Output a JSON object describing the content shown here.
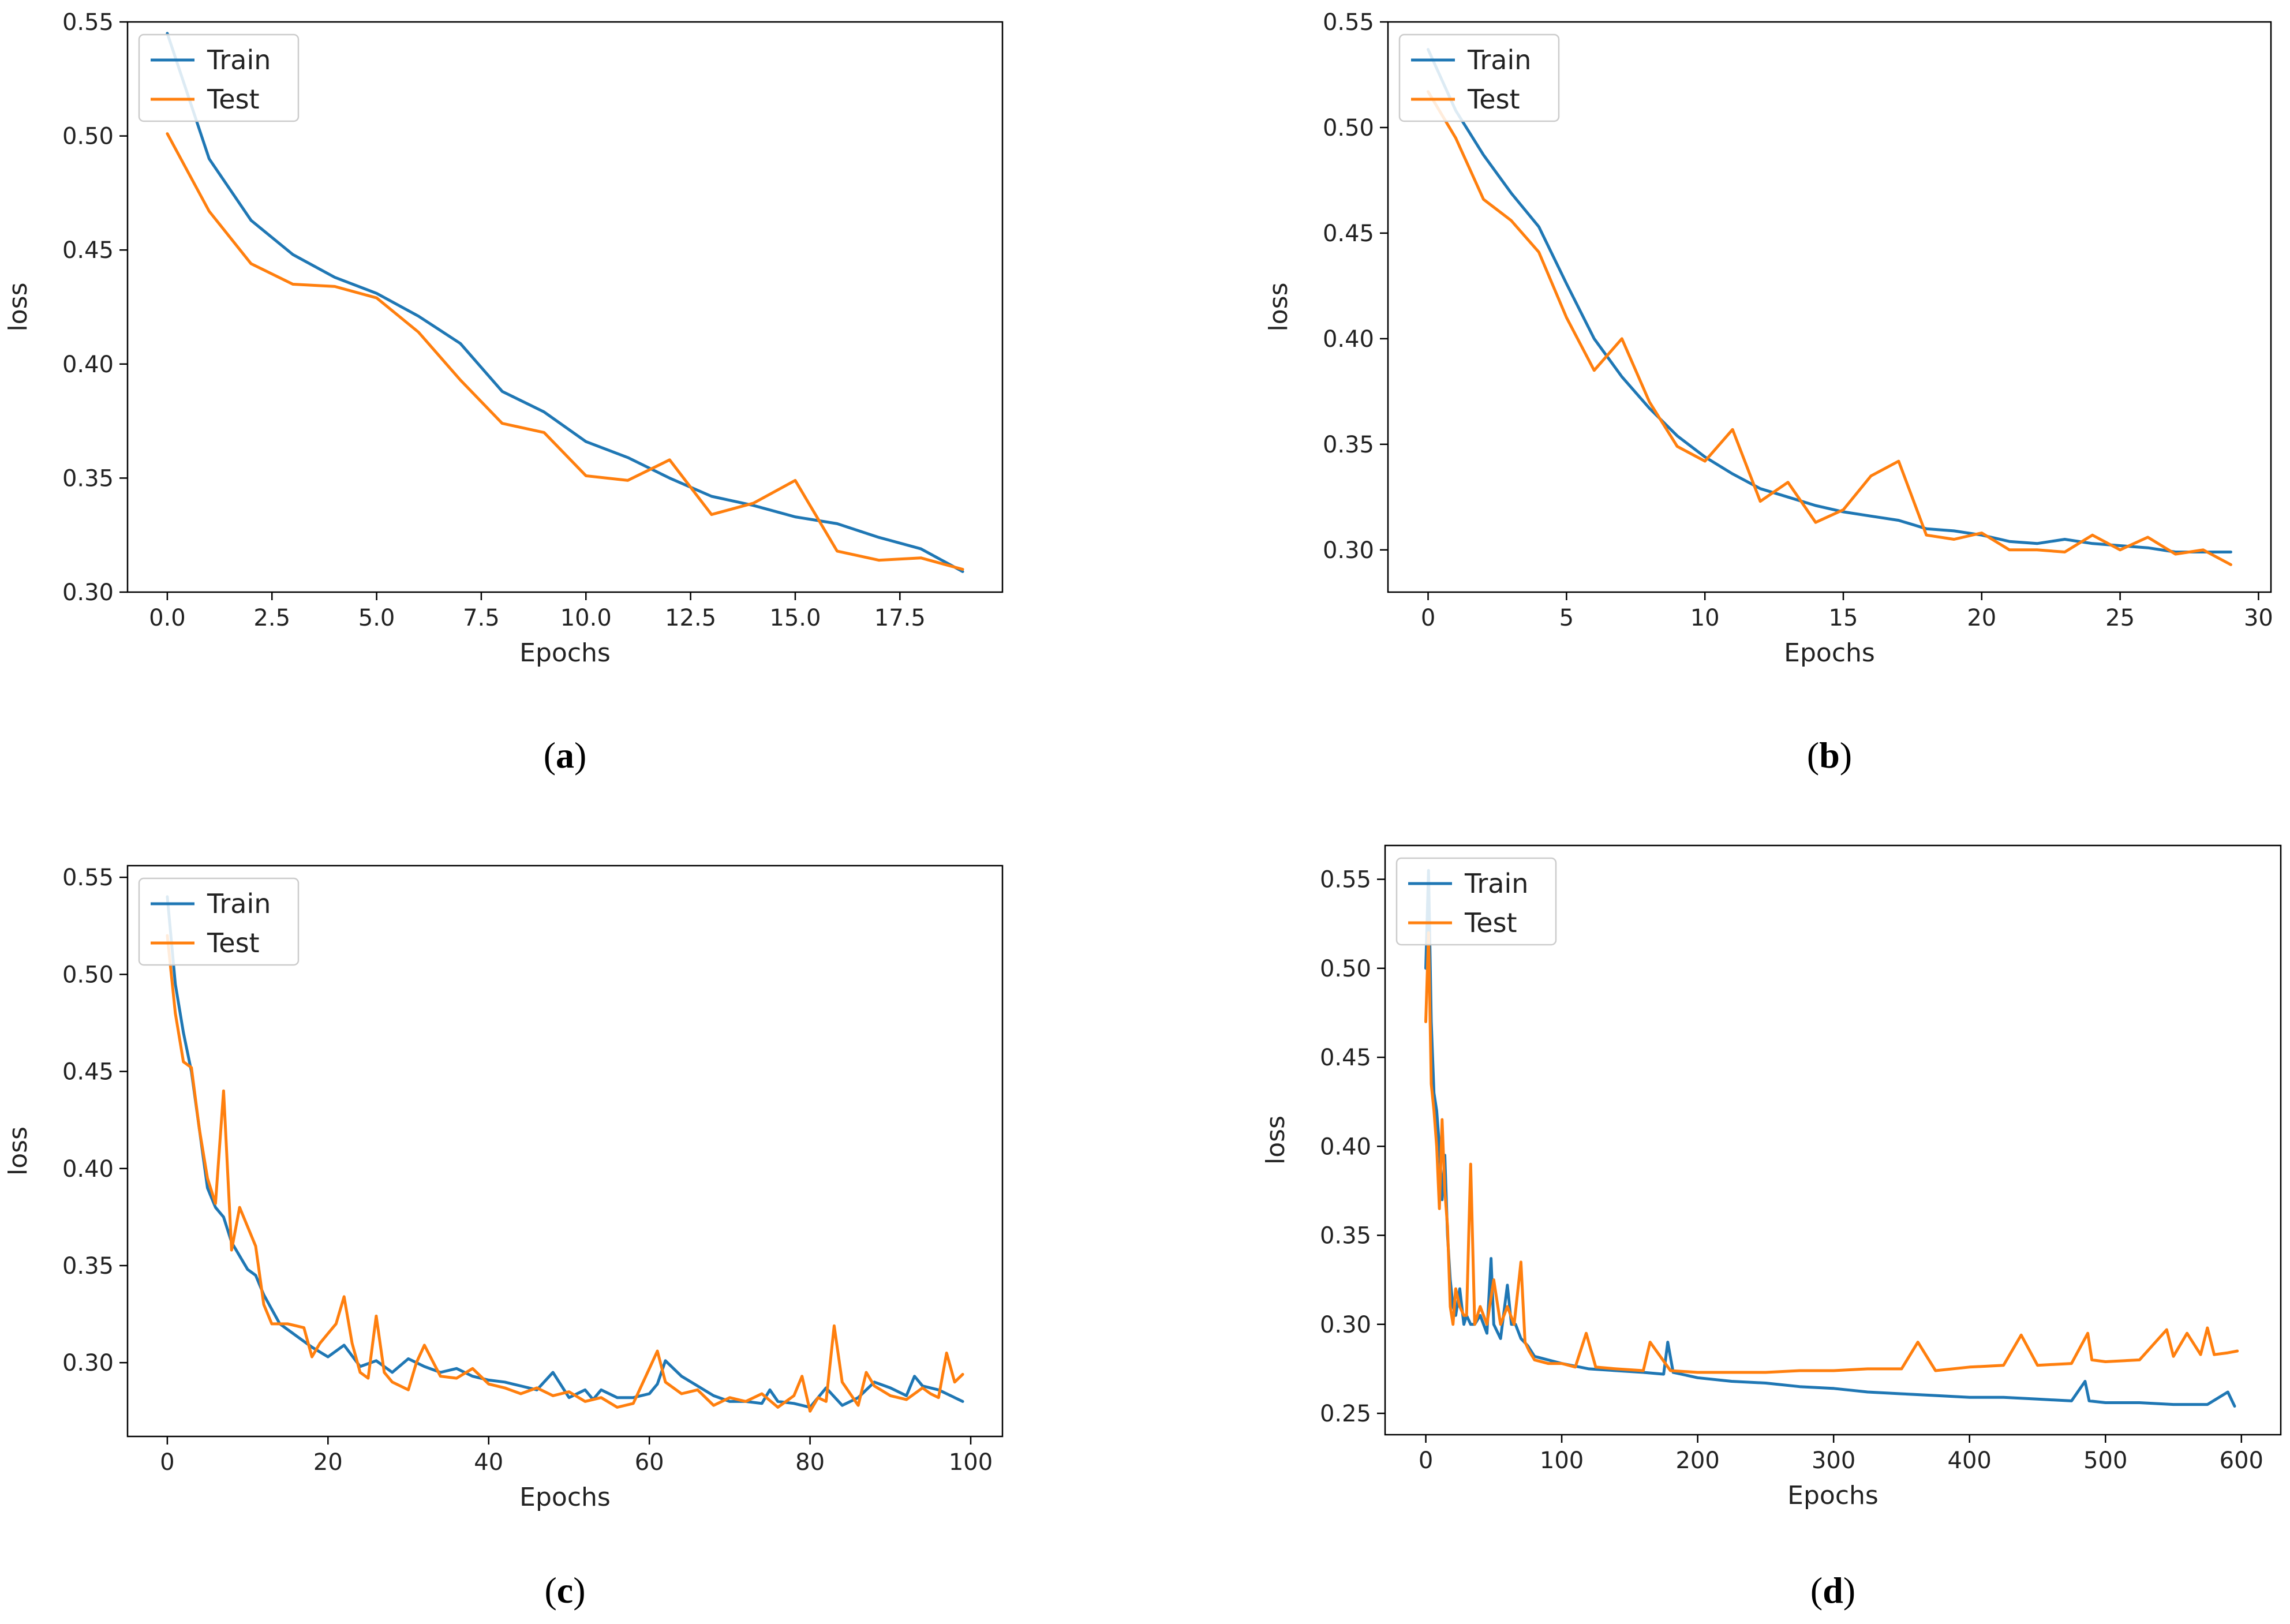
{
  "figure": {
    "series_colors": {
      "Train": "#1f77b4",
      "Test": "#ff7f0e"
    }
  },
  "chart_data": [
    {
      "id": "a",
      "caption_letter": "a",
      "type": "line",
      "xlabel": "Epochs",
      "ylabel": "loss",
      "xlim": [
        -0.95,
        19.95
      ],
      "ylim": [
        0.3,
        0.55
      ],
      "xticks": [
        0.0,
        2.5,
        5.0,
        7.5,
        10.0,
        12.5,
        15.0,
        17.5
      ],
      "xtick_labels": [
        "0.0",
        "2.5",
        "5.0",
        "7.5",
        "10.0",
        "12.5",
        "15.0",
        "17.5"
      ],
      "yticks": [
        0.3,
        0.35,
        0.4,
        0.45,
        0.5,
        0.55
      ],
      "ytick_labels": [
        "0.30",
        "0.35",
        "0.40",
        "0.45",
        "0.50",
        "0.55"
      ],
      "legend": [
        "Train",
        "Test"
      ],
      "legend_loc": "upper left",
      "series": [
        {
          "name": "Train",
          "color": "#1f77b4",
          "x": [
            0,
            1,
            2,
            3,
            4,
            5,
            6,
            7,
            8,
            9,
            10,
            11,
            12,
            13,
            14,
            15,
            16,
            17,
            18,
            19
          ],
          "y": [
            0.545,
            0.49,
            0.463,
            0.448,
            0.438,
            0.431,
            0.421,
            0.409,
            0.388,
            0.379,
            0.366,
            0.359,
            0.35,
            0.342,
            0.338,
            0.333,
            0.33,
            0.324,
            0.319,
            0.309
          ]
        },
        {
          "name": "Test",
          "color": "#ff7f0e",
          "x": [
            0,
            1,
            2,
            3,
            4,
            5,
            6,
            7,
            8,
            9,
            10,
            11,
            12,
            13,
            14,
            15,
            16,
            17,
            18,
            19
          ],
          "y": [
            0.501,
            0.467,
            0.444,
            0.435,
            0.434,
            0.429,
            0.414,
            0.393,
            0.374,
            0.37,
            0.351,
            0.349,
            0.358,
            0.334,
            0.339,
            0.349,
            0.318,
            0.314,
            0.315,
            0.31
          ]
        }
      ]
    },
    {
      "id": "b",
      "caption_letter": "b",
      "type": "line",
      "xlabel": "Epochs",
      "ylabel": "loss",
      "xlim": [
        -1.45,
        30.45
      ],
      "ylim": [
        0.28,
        0.55
      ],
      "xticks": [
        0,
        5,
        10,
        15,
        20,
        25,
        30
      ],
      "xtick_labels": [
        "0",
        "5",
        "10",
        "15",
        "20",
        "25",
        "30"
      ],
      "yticks": [
        0.3,
        0.35,
        0.4,
        0.45,
        0.5,
        0.55
      ],
      "ytick_labels": [
        "0.30",
        "0.35",
        "0.40",
        "0.45",
        "0.50",
        "0.55"
      ],
      "legend": [
        "Train",
        "Test"
      ],
      "legend_loc": "upper left",
      "series": [
        {
          "name": "Train",
          "color": "#1f77b4",
          "x": [
            0,
            1,
            2,
            3,
            4,
            5,
            6,
            7,
            8,
            9,
            10,
            11,
            12,
            13,
            14,
            15,
            16,
            17,
            18,
            19,
            20,
            21,
            22,
            23,
            24,
            25,
            26,
            27,
            28,
            29
          ],
          "y": [
            0.537,
            0.508,
            0.487,
            0.469,
            0.453,
            0.426,
            0.4,
            0.382,
            0.367,
            0.354,
            0.344,
            0.336,
            0.329,
            0.325,
            0.321,
            0.318,
            0.316,
            0.314,
            0.31,
            0.309,
            0.307,
            0.304,
            0.303,
            0.305,
            0.303,
            0.302,
            0.301,
            0.299,
            0.299,
            0.299
          ]
        },
        {
          "name": "Test",
          "color": "#ff7f0e",
          "x": [
            0,
            1,
            2,
            3,
            4,
            5,
            6,
            7,
            8,
            9,
            10,
            11,
            12,
            13,
            14,
            15,
            16,
            17,
            18,
            19,
            20,
            21,
            22,
            23,
            24,
            25,
            26,
            27,
            28,
            29
          ],
          "y": [
            0.517,
            0.495,
            0.466,
            0.456,
            0.441,
            0.41,
            0.385,
            0.4,
            0.37,
            0.349,
            0.342,
            0.357,
            0.323,
            0.332,
            0.313,
            0.319,
            0.335,
            0.342,
            0.307,
            0.305,
            0.308,
            0.3,
            0.3,
            0.299,
            0.307,
            0.3,
            0.306,
            0.298,
            0.3,
            0.293
          ]
        }
      ]
    },
    {
      "id": "c",
      "caption_letter": "c",
      "type": "line",
      "xlabel": "Epochs",
      "ylabel": "loss",
      "xlim": [
        -4.95,
        103.95
      ],
      "ylim": [
        0.262,
        0.556
      ],
      "xticks": [
        0,
        20,
        40,
        60,
        80,
        100
      ],
      "xtick_labels": [
        "0",
        "20",
        "40",
        "60",
        "80",
        "100"
      ],
      "yticks": [
        0.3,
        0.35,
        0.4,
        0.45,
        0.5,
        0.55
      ],
      "ytick_labels": [
        "0.30",
        "0.35",
        "0.40",
        "0.45",
        "0.50",
        "0.55"
      ],
      "legend": [
        "Train",
        "Test"
      ],
      "legend_loc": "upper left",
      "series": [
        {
          "name": "Train",
          "color": "#1f77b4",
          "x": [
            0,
            1,
            2,
            3,
            4,
            5,
            6,
            7,
            8,
            9,
            10,
            11,
            12,
            14,
            16,
            18,
            20,
            22,
            24,
            26,
            28,
            30,
            32,
            34,
            36,
            38,
            40,
            42,
            44,
            46,
            48,
            50,
            52,
            53,
            54,
            56,
            58,
            60,
            61,
            62,
            64,
            66,
            68,
            70,
            72,
            74,
            75,
            76,
            78,
            80,
            82,
            84,
            86,
            88,
            90,
            92,
            93,
            94,
            96,
            98,
            99
          ],
          "y": [
            0.54,
            0.495,
            0.47,
            0.45,
            0.42,
            0.39,
            0.38,
            0.375,
            0.362,
            0.355,
            0.348,
            0.345,
            0.335,
            0.32,
            0.314,
            0.308,
            0.303,
            0.309,
            0.298,
            0.301,
            0.295,
            0.302,
            0.298,
            0.295,
            0.297,
            0.293,
            0.291,
            0.29,
            0.288,
            0.286,
            0.295,
            0.282,
            0.286,
            0.281,
            0.286,
            0.282,
            0.282,
            0.284,
            0.289,
            0.301,
            0.293,
            0.288,
            0.283,
            0.28,
            0.28,
            0.279,
            0.286,
            0.28,
            0.279,
            0.277,
            0.287,
            0.278,
            0.282,
            0.29,
            0.287,
            0.283,
            0.293,
            0.288,
            0.286,
            0.282,
            0.28
          ]
        },
        {
          "name": "Test",
          "color": "#ff7f0e",
          "x": [
            0,
            1,
            2,
            3,
            4,
            5,
            6,
            7,
            8,
            9,
            10,
            11,
            12,
            13,
            15,
            17,
            18,
            19,
            20,
            21,
            22,
            23,
            24,
            25,
            26,
            27,
            28,
            30,
            31,
            32,
            34,
            36,
            38,
            40,
            42,
            44,
            46,
            48,
            50,
            52,
            54,
            56,
            58,
            60,
            61,
            62,
            64,
            66,
            68,
            70,
            72,
            74,
            76,
            78,
            79,
            80,
            81,
            82,
            83,
            84,
            86,
            87,
            88,
            90,
            92,
            94,
            95,
            96,
            97,
            98,
            99
          ],
          "y": [
            0.52,
            0.48,
            0.455,
            0.452,
            0.42,
            0.395,
            0.382,
            0.44,
            0.358,
            0.38,
            0.37,
            0.36,
            0.33,
            0.32,
            0.32,
            0.318,
            0.303,
            0.31,
            0.315,
            0.32,
            0.334,
            0.31,
            0.295,
            0.292,
            0.324,
            0.295,
            0.29,
            0.286,
            0.3,
            0.309,
            0.293,
            0.292,
            0.297,
            0.289,
            0.287,
            0.284,
            0.287,
            0.283,
            0.285,
            0.28,
            0.282,
            0.277,
            0.279,
            0.297,
            0.306,
            0.29,
            0.284,
            0.286,
            0.278,
            0.282,
            0.28,
            0.284,
            0.277,
            0.283,
            0.293,
            0.275,
            0.282,
            0.28,
            0.319,
            0.29,
            0.278,
            0.295,
            0.288,
            0.283,
            0.281,
            0.287,
            0.284,
            0.282,
            0.305,
            0.29,
            0.294
          ]
        }
      ]
    },
    {
      "id": "d",
      "caption_letter": "d",
      "type": "line",
      "xlabel": "Epochs",
      "ylabel": "loss",
      "xlim": [
        -29.95,
        628.95
      ],
      "ylim": [
        0.238,
        0.569
      ],
      "xticks": [
        0,
        100,
        200,
        300,
        400,
        500,
        600
      ],
      "xtick_labels": [
        "0",
        "100",
        "200",
        "300",
        "400",
        "500",
        "600"
      ],
      "yticks": [
        0.25,
        0.3,
        0.35,
        0.4,
        0.45,
        0.5,
        0.55
      ],
      "ytick_labels": [
        "0.25",
        "0.30",
        "0.35",
        "0.40",
        "0.45",
        "0.50",
        "0.55"
      ],
      "legend": [
        "Train",
        "Test"
      ],
      "legend_loc": "upper left",
      "series": [
        {
          "name": "Train",
          "color": "#1f77b4",
          "x": [
            0,
            2,
            4,
            6,
            8,
            10,
            12,
            14,
            16,
            18,
            20,
            22,
            25,
            28,
            30,
            33,
            36,
            40,
            45,
            48,
            50,
            55,
            60,
            63,
            66,
            70,
            75,
            80,
            90,
            100,
            120,
            140,
            160,
            175,
            178,
            182,
            200,
            225,
            250,
            275,
            300,
            325,
            350,
            375,
            400,
            425,
            450,
            475,
            485,
            488,
            500,
            525,
            550,
            575,
            590,
            595
          ],
          "y": [
            0.5,
            0.555,
            0.47,
            0.43,
            0.42,
            0.4,
            0.37,
            0.395,
            0.35,
            0.325,
            0.31,
            0.305,
            0.32,
            0.3,
            0.305,
            0.3,
            0.3,
            0.305,
            0.295,
            0.337,
            0.3,
            0.292,
            0.322,
            0.3,
            0.3,
            0.292,
            0.288,
            0.282,
            0.28,
            0.278,
            0.275,
            0.274,
            0.273,
            0.272,
            0.29,
            0.273,
            0.27,
            0.268,
            0.267,
            0.265,
            0.264,
            0.262,
            0.261,
            0.26,
            0.259,
            0.259,
            0.258,
            0.257,
            0.268,
            0.257,
            0.256,
            0.256,
            0.255,
            0.255,
            0.262,
            0.254
          ]
        },
        {
          "name": "Test",
          "color": "#ff7f0e",
          "x": [
            0,
            2,
            4,
            6,
            8,
            10,
            12,
            14,
            16,
            18,
            20,
            22,
            25,
            28,
            30,
            33,
            36,
            40,
            45,
            50,
            55,
            60,
            65,
            70,
            73,
            76,
            80,
            90,
            100,
            110,
            118,
            125,
            140,
            160,
            165,
            180,
            200,
            225,
            250,
            275,
            300,
            325,
            350,
            362,
            375,
            400,
            425,
            438,
            450,
            475,
            487,
            490,
            500,
            525,
            545,
            550,
            560,
            570,
            575,
            580,
            590,
            597
          ],
          "y": [
            0.47,
            0.52,
            0.435,
            0.42,
            0.4,
            0.365,
            0.415,
            0.375,
            0.355,
            0.31,
            0.3,
            0.32,
            0.31,
            0.305,
            0.305,
            0.39,
            0.3,
            0.31,
            0.3,
            0.325,
            0.3,
            0.31,
            0.3,
            0.335,
            0.29,
            0.285,
            0.28,
            0.278,
            0.278,
            0.276,
            0.295,
            0.276,
            0.275,
            0.274,
            0.29,
            0.274,
            0.273,
            0.273,
            0.273,
            0.274,
            0.274,
            0.275,
            0.275,
            0.29,
            0.274,
            0.276,
            0.277,
            0.294,
            0.277,
            0.278,
            0.295,
            0.28,
            0.279,
            0.28,
            0.297,
            0.282,
            0.295,
            0.283,
            0.298,
            0.283,
            0.284,
            0.285
          ]
        }
      ]
    }
  ]
}
